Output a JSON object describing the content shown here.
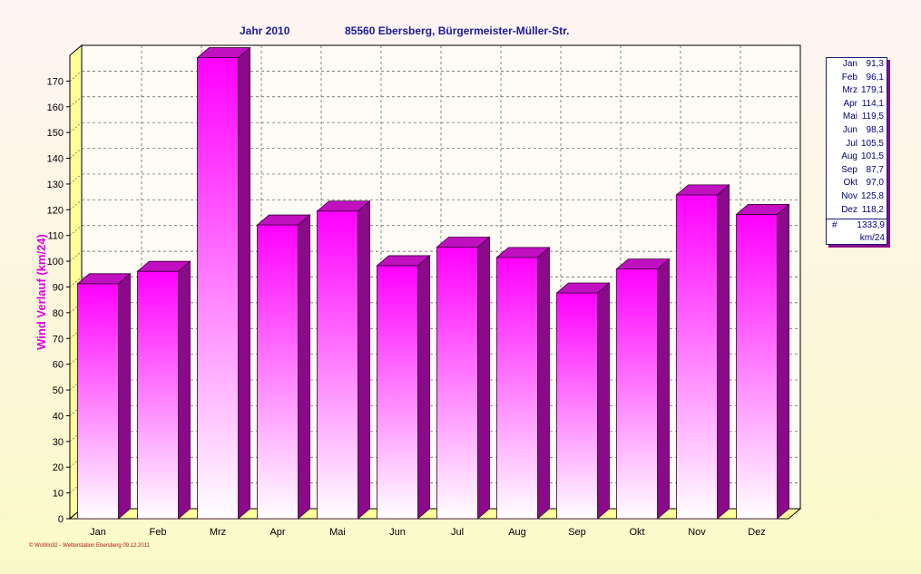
{
  "title": {
    "year": "Jahr  2010",
    "location": "85560 Ebersberg, Bürgermeister-Müller-Str."
  },
  "footer": "© WsWin32  -  Wetterstation Ebersberg  09.12.2011",
  "colors": {
    "bar_top": "#ff00ff",
    "bar_bottom": "#ffffff",
    "bar_side": "#8a0a8a",
    "axis_wall": "#ffff99",
    "title": "#1a1aa0",
    "ylabel": "#e000e0"
  },
  "legend": {
    "items": [
      {
        "name": "Jan",
        "value": "91,3"
      },
      {
        "name": "Feb",
        "value": "96,1"
      },
      {
        "name": "Mrz",
        "value": "179,1"
      },
      {
        "name": "Apr",
        "value": "114,1"
      },
      {
        "name": "Mai",
        "value": "119,5"
      },
      {
        "name": "Jun",
        "value": "98,3"
      },
      {
        "name": "Jul",
        "value": "105,5"
      },
      {
        "name": "Aug",
        "value": "101,5"
      },
      {
        "name": "Sep",
        "value": "87,7"
      },
      {
        "name": "Okt",
        "value": "97,0"
      },
      {
        "name": "Nov",
        "value": "125,8"
      },
      {
        "name": "Dez",
        "value": "118,2"
      }
    ],
    "total_symbol": "#",
    "total": "1333,9",
    "unit": "km/24"
  },
  "chart_data": {
    "type": "bar",
    "title": "Jahr  2010    85560 Ebersberg, Bürgermeister-Müller-Str.",
    "xlabel": "",
    "ylabel": "Wind Verlauf  (km/24)",
    "categories": [
      "Jan",
      "Feb",
      "Mrz",
      "Apr",
      "Mai",
      "Jun",
      "Jul",
      "Aug",
      "Sep",
      "Okt",
      "Nov",
      "Dez"
    ],
    "values": [
      91.3,
      96.1,
      179.1,
      114.1,
      119.5,
      98.3,
      105.5,
      101.5,
      87.7,
      97.0,
      125.8,
      118.2
    ],
    "ylim": [
      0,
      180
    ],
    "yticks": [
      0,
      10,
      20,
      30,
      40,
      50,
      60,
      70,
      80,
      90,
      100,
      110,
      120,
      130,
      140,
      150,
      160,
      170
    ],
    "grid": true,
    "legend_position": "right",
    "three_d": true
  }
}
